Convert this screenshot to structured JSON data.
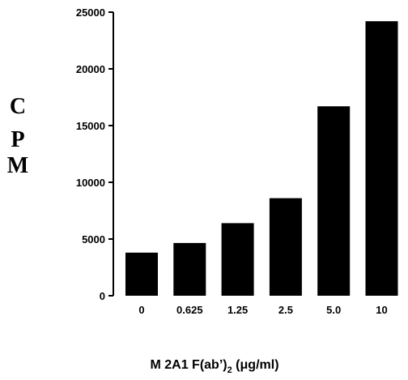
{
  "chart_data": {
    "type": "bar",
    "categories": [
      "0",
      "0.625",
      "1.25",
      "2.5",
      "5.0",
      "10"
    ],
    "values": [
      3800,
      4650,
      6400,
      8600,
      16700,
      24200
    ],
    "ylabel": "CPM",
    "ylabel_letters": [
      "C",
      "P",
      "M"
    ],
    "xlabel": {
      "main": "M 2A1 F(ab’)",
      "subscript": "2",
      "units": " (μg/ml)"
    },
    "ylim": [
      0,
      25000
    ],
    "yticks": [
      "0",
      "5000",
      "10000",
      "15000",
      "20000",
      "25000"
    ],
    "grid": false,
    "bar_color": "#000000"
  }
}
